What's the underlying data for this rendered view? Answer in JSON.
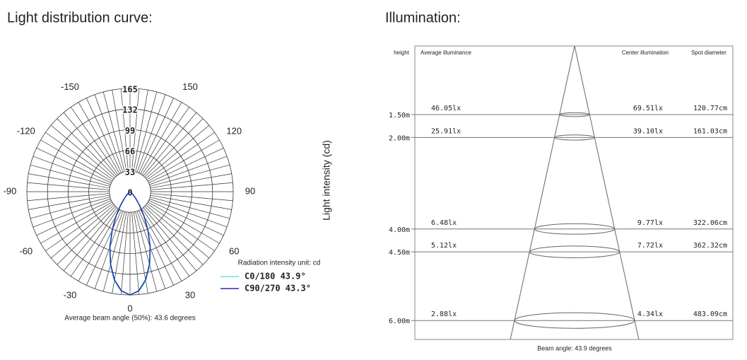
{
  "chart_data": [
    {
      "type": "polar",
      "title": "Light distribution curve:",
      "ylabel": "Light intensity (cd)",
      "unit_note": "Radiation intensity unit: cd",
      "footer": "Average beam angle (50%): 43.6 degrees",
      "rlim": [
        0,
        165
      ],
      "rticks": [
        0,
        33,
        66,
        99,
        132,
        165
      ],
      "thetaticks": [
        -150,
        -120,
        -90,
        -60,
        -30,
        0,
        30,
        60,
        90,
        120,
        150
      ],
      "x": [
        -60,
        -55,
        -50,
        -45,
        -40,
        -35,
        -30,
        -25,
        -20,
        -15,
        -10,
        -5,
        0,
        5,
        10,
        15,
        20,
        25,
        30,
        35,
        40,
        45,
        50,
        55,
        60
      ],
      "series": [
        {
          "name": "C0/180 43.9°",
          "color": "#5ee8e0",
          "values": [
            1,
            2,
            4,
            8,
            15,
            28,
            46,
            70,
            96,
            122,
            145,
            160,
            165,
            160,
            145,
            122,
            96,
            70,
            46,
            28,
            15,
            8,
            4,
            2,
            1
          ]
        },
        {
          "name": "C90/270 43.3°",
          "color": "#2b2ba8",
          "values": [
            0,
            1,
            3,
            7,
            14,
            26,
            44,
            67,
            94,
            120,
            143,
            159,
            165,
            159,
            143,
            120,
            94,
            67,
            44,
            26,
            14,
            7,
            3,
            1,
            0
          ]
        }
      ]
    },
    {
      "type": "illumination",
      "title": "Illumination:",
      "headers": [
        "height",
        "Average illuminance",
        "Center illumination",
        "Spot diameter"
      ],
      "rows": [
        {
          "height": {
            "value": 1.5,
            "label": "1.50m"
          },
          "average": "46.05lx",
          "center": "69.51lx",
          "diameter": {
            "value": 120.77,
            "label": "120.77cm"
          }
        },
        {
          "height": {
            "value": 2,
            "label": "2.00m"
          },
          "average": "25.91lx",
          "center": "39.10lx",
          "diameter": {
            "value": 161.03,
            "label": "161.03cm"
          }
        },
        {
          "height": {
            "value": 4,
            "label": "4.00m"
          },
          "average": "6.48lx",
          "center": "9.77lx",
          "diameter": {
            "value": 322.06,
            "label": "322.06cm"
          }
        },
        {
          "height": {
            "value": 4.5,
            "label": "4.50m"
          },
          "average": "5.12lx",
          "center": "7.72lx",
          "diameter": {
            "value": 362.32,
            "label": "362.32cm"
          }
        },
        {
          "height": {
            "value": 6,
            "label": "6.00m"
          },
          "average": "2.88lx",
          "center": "4.34lx",
          "diameter": {
            "value": 483.09,
            "label": "483.09cm"
          }
        }
      ],
      "footer": "Beam angle: 43.9 degrees"
    }
  ]
}
